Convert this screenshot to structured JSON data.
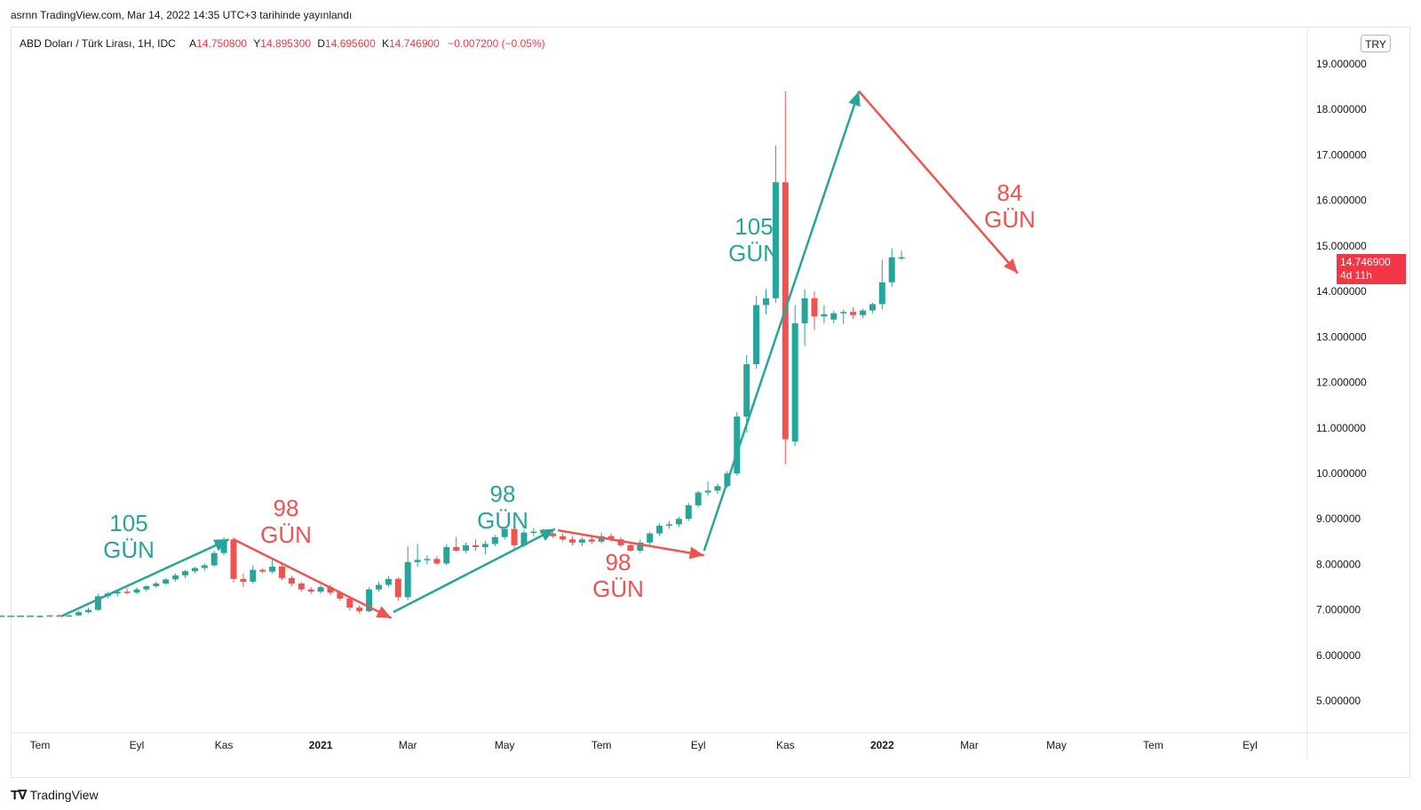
{
  "header": {
    "published_text": "asrnn TradingView.com, Mar 14, 2022 14:35 UTC+3 tarihinde yayınlandı"
  },
  "legend": {
    "symbol": "ABD Doları / Türk Lirası, 1H, IDC",
    "open_label": "A",
    "open": "14.750800",
    "high_label": "Y",
    "high": "14.895300",
    "low_label": "D",
    "low": "14.695600",
    "close_label": "K",
    "close": "14.746900",
    "change": "−0.007200 (−0.05%)"
  },
  "currency_button": "TRY",
  "price_tag": {
    "price": "14.746900",
    "countdown": "4d 11h"
  },
  "footer": {
    "logo_text": "TradingView"
  },
  "colors": {
    "up": "#26a69a",
    "down": "#ef5350",
    "grid": "#e0e3eb",
    "tag": "#f23645"
  },
  "chart_data": {
    "type": "candlestick",
    "y_ticks": [
      "19.000000",
      "18.000000",
      "17.000000",
      "16.000000",
      "15.000000",
      "14.000000",
      "13.000000",
      "12.000000",
      "11.000000",
      "10.000000",
      "9.000000",
      "8.000000",
      "7.000000",
      "6.000000",
      "5.000000"
    ],
    "ylim": [
      4.3,
      19.8
    ],
    "x_labels": [
      {
        "label": "Tem",
        "i": 0,
        "bold": false
      },
      {
        "label": "Eyl",
        "i": 10,
        "bold": false
      },
      {
        "label": "Kas",
        "i": 19,
        "bold": false
      },
      {
        "label": "2021",
        "i": 29,
        "bold": true
      },
      {
        "label": "Mar",
        "i": 38,
        "bold": false
      },
      {
        "label": "May",
        "i": 48,
        "bold": false
      },
      {
        "label": "Tem",
        "i": 58,
        "bold": false
      },
      {
        "label": "Eyl",
        "i": 68,
        "bold": false
      },
      {
        "label": "Kas",
        "i": 77,
        "bold": false
      },
      {
        "label": "2022",
        "i": 87,
        "bold": true
      },
      {
        "label": "Mar",
        "i": 96,
        "bold": false
      },
      {
        "label": "May",
        "i": 105,
        "bold": false
      },
      {
        "label": "Tem",
        "i": 115,
        "bold": false
      },
      {
        "label": "Eyl",
        "i": 125,
        "bold": false
      }
    ],
    "candles": [
      [
        6.86,
        6.88,
        6.84,
        6.87
      ],
      [
        6.87,
        6.89,
        6.85,
        6.88
      ],
      [
        6.88,
        6.9,
        6.86,
        6.87
      ],
      [
        6.87,
        6.89,
        6.85,
        6.88
      ],
      [
        6.88,
        6.98,
        6.86,
        6.95
      ],
      [
        6.95,
        7.05,
        6.92,
        7.0
      ],
      [
        7.0,
        7.35,
        6.98,
        7.3
      ],
      [
        7.3,
        7.4,
        7.25,
        7.36
      ],
      [
        7.36,
        7.44,
        7.3,
        7.4
      ],
      [
        7.4,
        7.48,
        7.34,
        7.38
      ],
      [
        7.38,
        7.5,
        7.35,
        7.45
      ],
      [
        7.45,
        7.55,
        7.4,
        7.52
      ],
      [
        7.52,
        7.62,
        7.48,
        7.58
      ],
      [
        7.58,
        7.7,
        7.55,
        7.67
      ],
      [
        7.67,
        7.8,
        7.62,
        7.76
      ],
      [
        7.76,
        7.88,
        7.7,
        7.85
      ],
      [
        7.85,
        7.95,
        7.8,
        7.92
      ],
      [
        7.92,
        8.02,
        7.86,
        7.98
      ],
      [
        7.98,
        8.3,
        7.94,
        8.25
      ],
      [
        8.25,
        8.6,
        8.2,
        8.55
      ],
      [
        8.55,
        8.6,
        7.6,
        7.68
      ],
      [
        7.68,
        7.8,
        7.5,
        7.62
      ],
      [
        7.62,
        7.98,
        7.58,
        7.88
      ],
      [
        7.88,
        7.92,
        7.8,
        7.84
      ],
      [
        7.84,
        8.1,
        7.8,
        7.95
      ],
      [
        7.95,
        8.0,
        7.65,
        7.7
      ],
      [
        7.7,
        7.75,
        7.52,
        7.58
      ],
      [
        7.58,
        7.62,
        7.4,
        7.45
      ],
      [
        7.45,
        7.5,
        7.35,
        7.4
      ],
      [
        7.4,
        7.55,
        7.36,
        7.5
      ],
      [
        7.5,
        7.55,
        7.32,
        7.38
      ],
      [
        7.38,
        7.42,
        7.2,
        7.25
      ],
      [
        7.25,
        7.3,
        6.98,
        7.05
      ],
      [
        7.05,
        7.1,
        6.92,
        6.97
      ],
      [
        6.97,
        7.5,
        6.95,
        7.45
      ],
      [
        7.45,
        7.62,
        7.4,
        7.55
      ],
      [
        7.55,
        7.75,
        7.5,
        7.68
      ],
      [
        7.68,
        7.72,
        7.2,
        7.28
      ],
      [
        7.28,
        8.4,
        7.22,
        8.05
      ],
      [
        8.05,
        8.45,
        7.95,
        8.1
      ],
      [
        8.1,
        8.2,
        8.0,
        8.12
      ],
      [
        8.12,
        8.18,
        7.98,
        8.02
      ],
      [
        8.02,
        8.45,
        7.98,
        8.38
      ],
      [
        8.38,
        8.6,
        8.28,
        8.3
      ],
      [
        8.3,
        8.48,
        8.25,
        8.42
      ],
      [
        8.42,
        8.55,
        8.3,
        8.38
      ],
      [
        8.38,
        8.52,
        8.22,
        8.45
      ],
      [
        8.45,
        8.65,
        8.4,
        8.6
      ],
      [
        8.6,
        8.82,
        8.55,
        8.78
      ],
      [
        8.78,
        8.85,
        8.35,
        8.42
      ],
      [
        8.42,
        8.75,
        8.38,
        8.7
      ],
      [
        8.7,
        8.8,
        8.62,
        8.72
      ],
      [
        8.72,
        8.78,
        8.64,
        8.68
      ],
      [
        8.68,
        8.72,
        8.58,
        8.62
      ],
      [
        8.62,
        8.68,
        8.5,
        8.55
      ],
      [
        8.55,
        8.62,
        8.42,
        8.48
      ],
      [
        8.48,
        8.6,
        8.4,
        8.55
      ],
      [
        8.55,
        8.62,
        8.45,
        8.5
      ],
      [
        8.5,
        8.7,
        8.46,
        8.62
      ],
      [
        8.62,
        8.68,
        8.5,
        8.55
      ],
      [
        8.55,
        8.6,
        8.38,
        8.42
      ],
      [
        8.42,
        8.5,
        8.28,
        8.3
      ],
      [
        8.3,
        8.55,
        8.25,
        8.48
      ],
      [
        8.48,
        8.72,
        8.42,
        8.68
      ],
      [
        8.68,
        8.9,
        8.62,
        8.85
      ],
      [
        8.85,
        8.95,
        8.78,
        8.88
      ],
      [
        8.88,
        9.05,
        8.82,
        9.0
      ],
      [
        9.0,
        9.35,
        8.95,
        9.3
      ],
      [
        9.3,
        9.62,
        9.25,
        9.58
      ],
      [
        9.58,
        9.82,
        9.5,
        9.62
      ],
      [
        9.62,
        9.78,
        9.55,
        9.72
      ],
      [
        9.72,
        10.05,
        9.68,
        10.0
      ],
      [
        10.0,
        11.35,
        9.95,
        11.25
      ],
      [
        11.25,
        12.6,
        10.9,
        12.4
      ],
      [
        12.4,
        13.9,
        12.3,
        13.7
      ],
      [
        13.7,
        14.05,
        13.5,
        13.85
      ],
      [
        13.85,
        17.2,
        13.75,
        16.4
      ],
      [
        16.4,
        18.4,
        10.2,
        10.75
      ],
      [
        10.7,
        13.7,
        10.6,
        13.3
      ],
      [
        13.3,
        14.05,
        12.8,
        13.85
      ],
      [
        13.85,
        14.0,
        13.15,
        13.45
      ],
      [
        13.45,
        13.7,
        13.3,
        13.5
      ],
      [
        13.38,
        13.58,
        13.3,
        13.52
      ],
      [
        13.52,
        13.6,
        13.28,
        13.55
      ],
      [
        13.55,
        13.65,
        13.4,
        13.48
      ],
      [
        13.48,
        13.62,
        13.42,
        13.58
      ],
      [
        13.58,
        13.75,
        13.52,
        13.72
      ],
      [
        13.72,
        14.7,
        13.6,
        14.2
      ],
      [
        14.2,
        14.95,
        14.1,
        14.75
      ],
      [
        14.75,
        14.9,
        14.69,
        14.75
      ]
    ]
  },
  "annotations": [
    {
      "line1": "105",
      "line2": "GÜN",
      "color": "up"
    },
    {
      "line1": "98",
      "line2": "GÜN",
      "color": "down"
    },
    {
      "line1": "98",
      "line2": "GÜN",
      "color": "up"
    },
    {
      "line1": "98",
      "line2": "GÜN",
      "color": "down"
    },
    {
      "line1": "105",
      "line2": "GÜN",
      "color": "up"
    },
    {
      "line1": "84",
      "line2": "GÜN",
      "color": "down"
    }
  ]
}
